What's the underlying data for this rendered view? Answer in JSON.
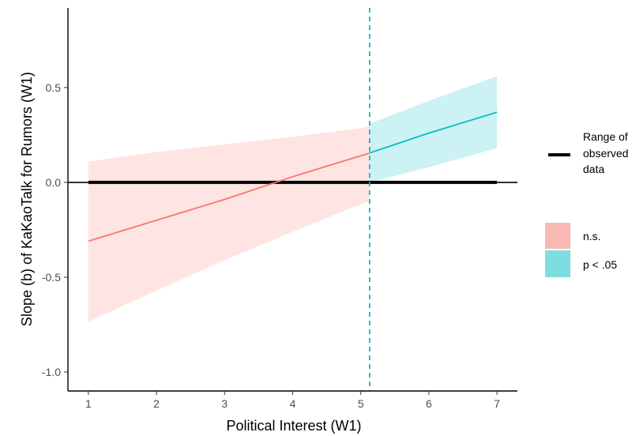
{
  "chart_data": {
    "type": "line",
    "title": "",
    "xlabel": "Political Interest (W1)",
    "ylabel": "Slope (b) of KaKaoTalk for Rumors (W1)",
    "xlim": [
      0.7,
      7.3
    ],
    "ylim": [
      -1.1,
      0.92
    ],
    "x_ticks": [
      1,
      2,
      3,
      4,
      5,
      6,
      7
    ],
    "x_tick_labels": [
      "1",
      "2",
      "3",
      "4",
      "5",
      "6",
      "7"
    ],
    "y_ticks": [
      -1.0,
      -0.5,
      0.0,
      0.5
    ],
    "y_tick_labels": [
      "-1.0",
      "-0.5",
      "0.0",
      "0.5"
    ],
    "grid": false,
    "jn_point": 5.13,
    "zero_line": 0,
    "observed_range": [
      1,
      7
    ],
    "series": [
      {
        "name": "n.s.",
        "color": "#F8766D",
        "fill": "#F8766D",
        "x": [
          1,
          2,
          3,
          4,
          5,
          5.13
        ],
        "y": [
          -0.31,
          -0.2,
          -0.09,
          0.03,
          0.14,
          0.155
        ],
        "lower": [
          -0.735,
          -0.57,
          -0.41,
          -0.26,
          -0.115,
          -0.1
        ],
        "upper": [
          0.11,
          0.16,
          0.2,
          0.24,
          0.285,
          0.3
        ]
      },
      {
        "name": "p < .05",
        "color": "#00BFC4",
        "fill": "#00BFC4",
        "x": [
          5.13,
          6,
          7
        ],
        "y": [
          0.155,
          0.26,
          0.37
        ],
        "lower": [
          0,
          0.08,
          0.18
        ],
        "upper": [
          0.31,
          0.43,
          0.56
        ]
      }
    ],
    "legend": {
      "placement": "right",
      "range_label_lines": [
        "Range of",
        "observed",
        "data"
      ],
      "entries": [
        {
          "label": "n.s.",
          "color": "#F8B9B4"
        },
        {
          "label": "p < .05",
          "color": "#7FDDE0"
        }
      ]
    }
  }
}
